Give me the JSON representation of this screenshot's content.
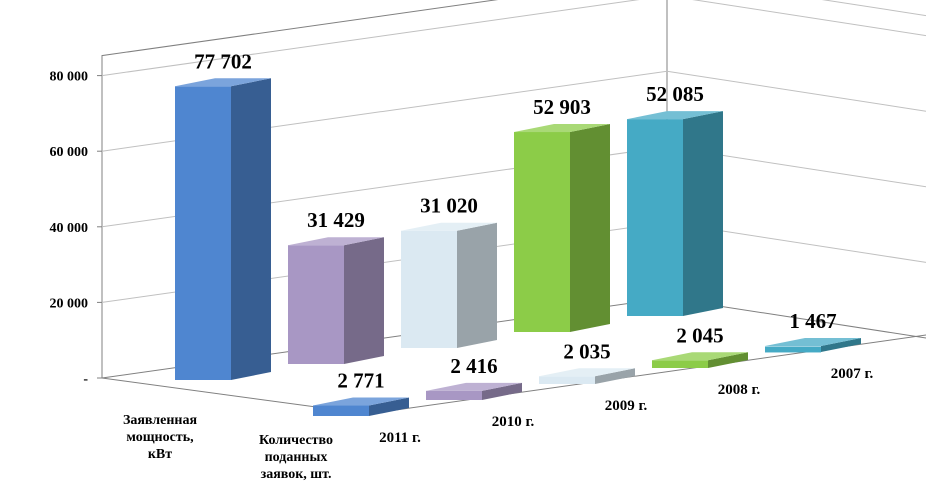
{
  "chart_data": {
    "type": "bar",
    "subtype": "3d-column",
    "categories": [
      "Заявленная мощность, кВт",
      "Количество поданных заявок, шт."
    ],
    "series": [
      {
        "name": "2011 г.",
        "values": [
          77702,
          2771
        ],
        "color": "#4f86d0",
        "labels": [
          "77 702",
          "2 771"
        ]
      },
      {
        "name": "2010 г.",
        "values": [
          31429,
          2416
        ],
        "color": "#a897c4",
        "labels": [
          "31 429",
          "2 416"
        ]
      },
      {
        "name": "2009 г.",
        "values": [
          31020,
          2035
        ],
        "color": "#dbe9f2",
        "labels": [
          "31 020",
          "2 035"
        ]
      },
      {
        "name": "2008 г.",
        "values": [
          52903,
          2045
        ],
        "color": "#8ccc48",
        "labels": [
          "52 903",
          "2 045"
        ]
      },
      {
        "name": "2007 г.",
        "values": [
          52085,
          1467
        ],
        "color": "#45aac5",
        "labels": [
          "52 085",
          "1 467"
        ]
      }
    ],
    "y_ticks": [
      "-",
      "20 000",
      "40 000",
      "60 000",
      "80 000"
    ],
    "ylim": [
      0,
      80000
    ],
    "grid": true,
    "legend": "none"
  }
}
